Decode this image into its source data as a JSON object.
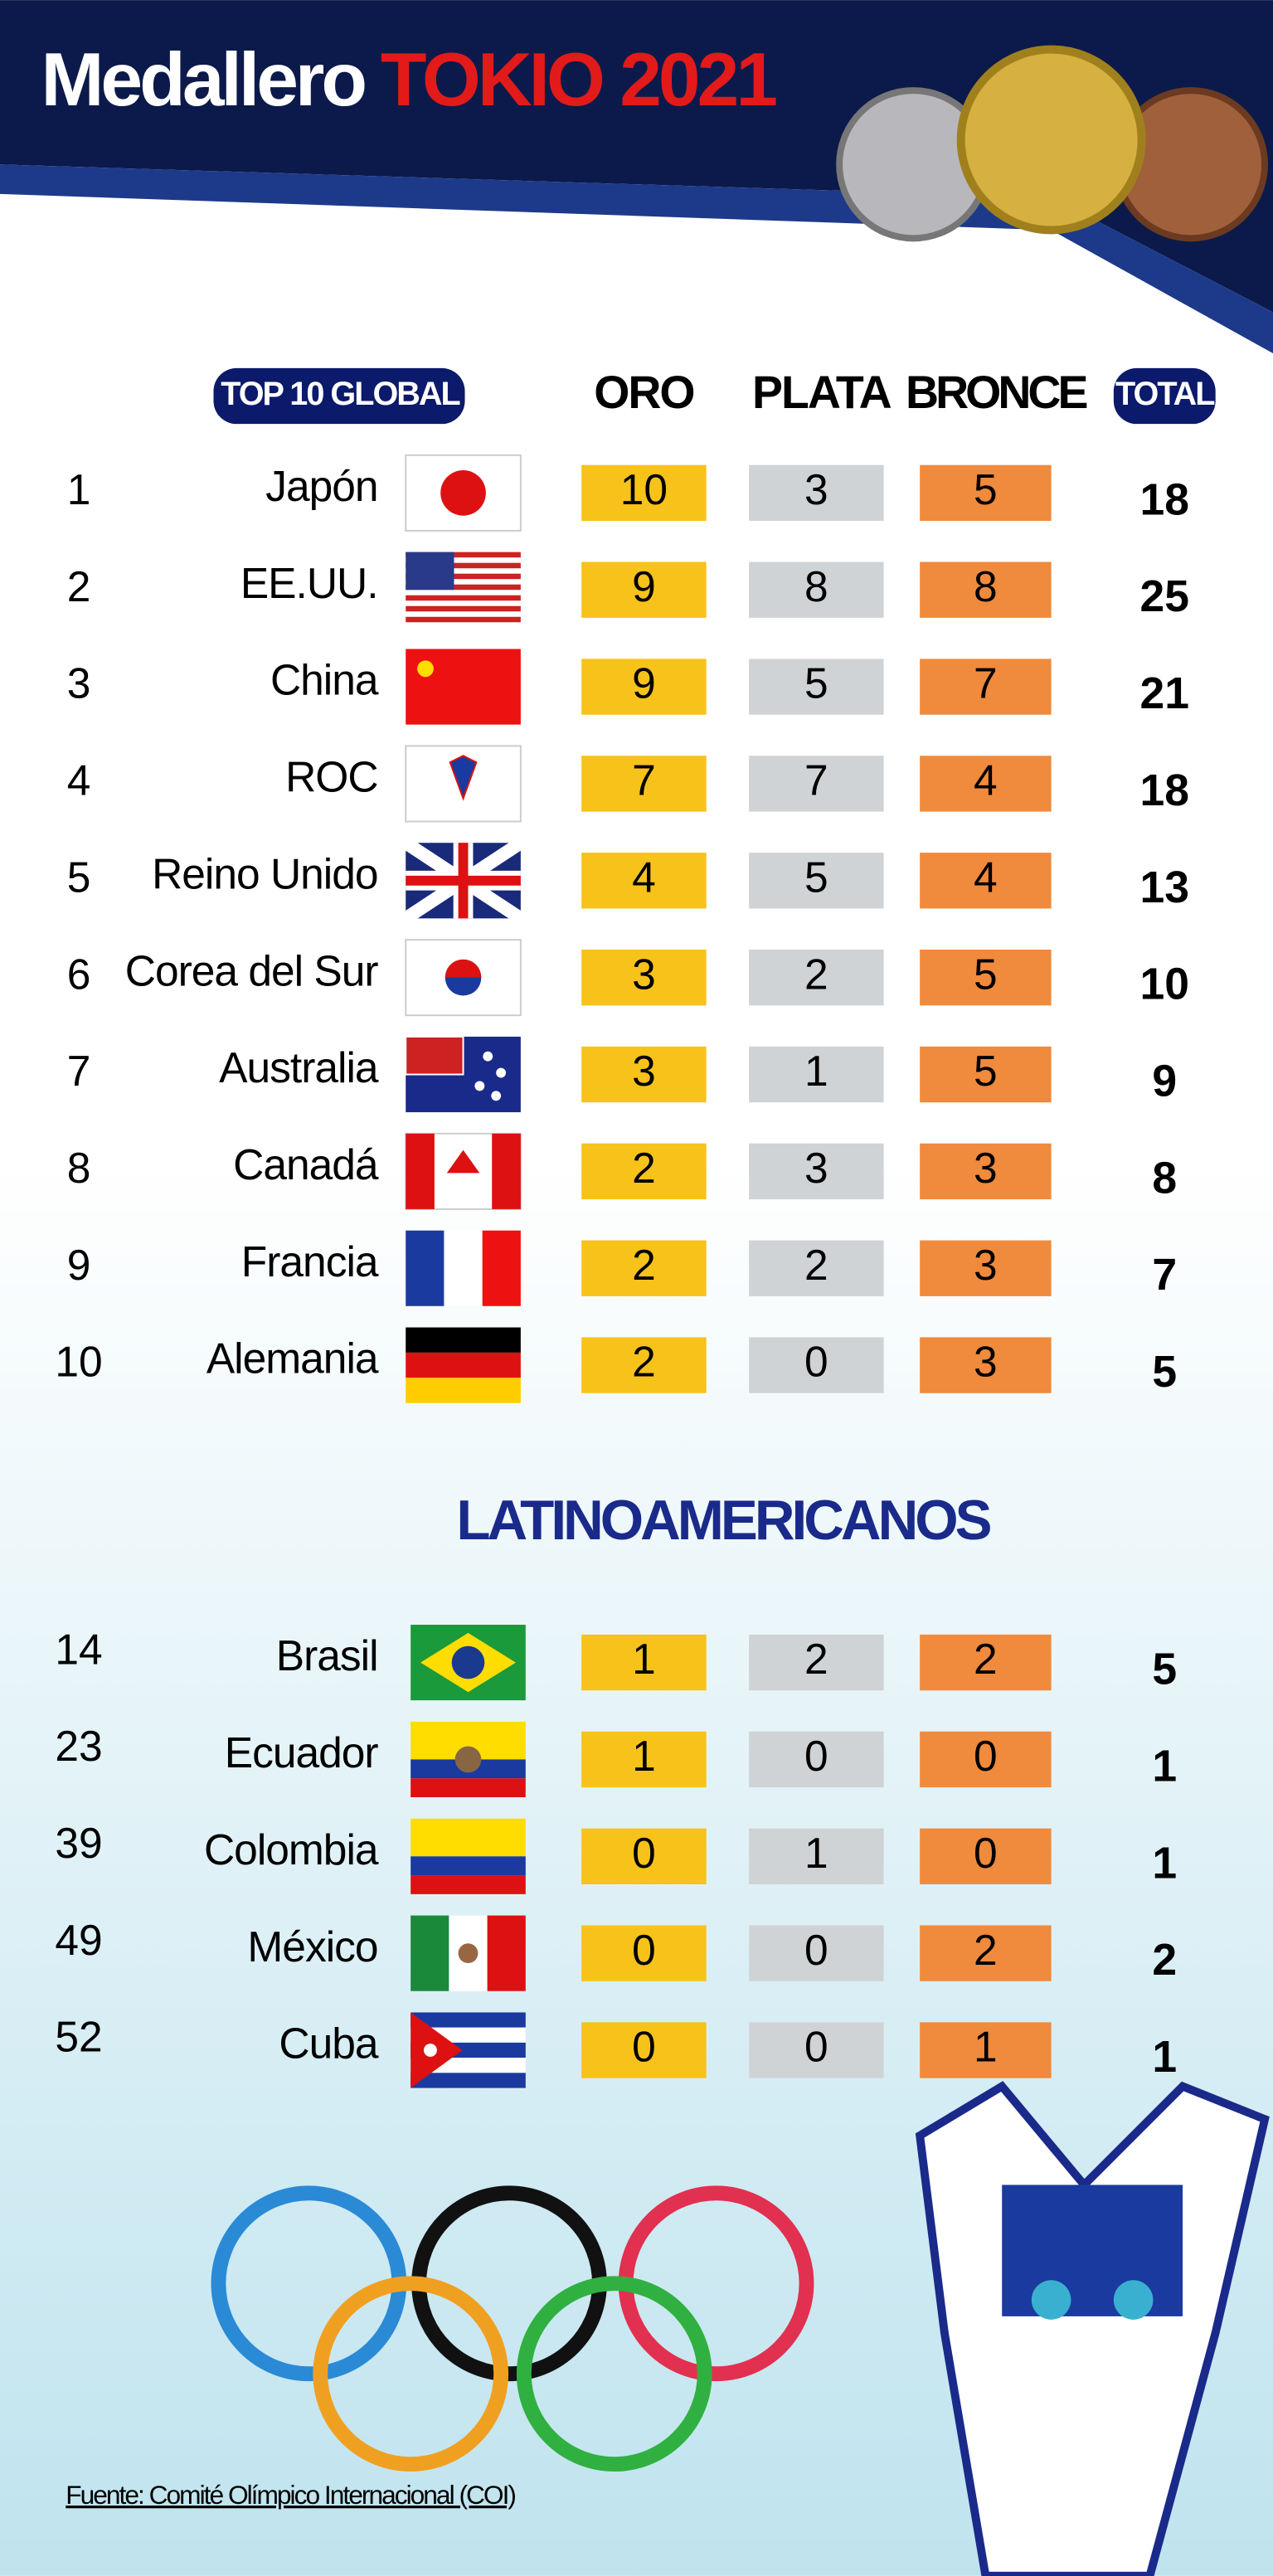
{
  "header": {
    "title_a": "Medallero",
    "title_b": "TOKIO 2021"
  },
  "columns": {
    "top": "TOP 10 GLOBAL",
    "gold": "ORO",
    "silver": "PLATA",
    "bronze": "BRONCE",
    "total": "TOTAL"
  },
  "top10": [
    [
      "1",
      "Japón",
      "10",
      "3",
      "5",
      "18"
    ],
    [
      "2",
      "EE.UU.",
      "9",
      "8",
      "8",
      "25"
    ],
    [
      "3",
      "China",
      "9",
      "5",
      "7",
      "21"
    ],
    [
      "4",
      "ROC",
      "7",
      "7",
      "4",
      "18"
    ],
    [
      "5",
      "Reino Unido",
      "4",
      "5",
      "4",
      "13"
    ],
    [
      "6",
      "Corea del Sur",
      "3",
      "2",
      "5",
      "10"
    ],
    [
      "7",
      "Australia",
      "3",
      "1",
      "5",
      "9"
    ],
    [
      "8",
      "Canadá",
      "2",
      "3",
      "3",
      "8"
    ],
    [
      "9",
      "Francia",
      "2",
      "2",
      "3",
      "7"
    ],
    [
      "10",
      "Alemania",
      "2",
      "0",
      "3",
      "5"
    ]
  ],
  "latam_title": "LATINOAMERICANOS",
  "latam": [
    [
      "14",
      "Brasil",
      "1",
      "2",
      "2",
      "5"
    ],
    [
      "23",
      "Ecuador",
      "1",
      "0",
      "0",
      "1"
    ],
    [
      "39",
      "Colombia",
      "0",
      "1",
      "0",
      "1"
    ],
    [
      "49",
      "México",
      "0",
      "0",
      "2",
      "2"
    ],
    [
      "52",
      "Cuba",
      "0",
      "0",
      "1",
      "1"
    ]
  ],
  "source": "Fuente: Comité Olímpico Internacional (COI)"
}
